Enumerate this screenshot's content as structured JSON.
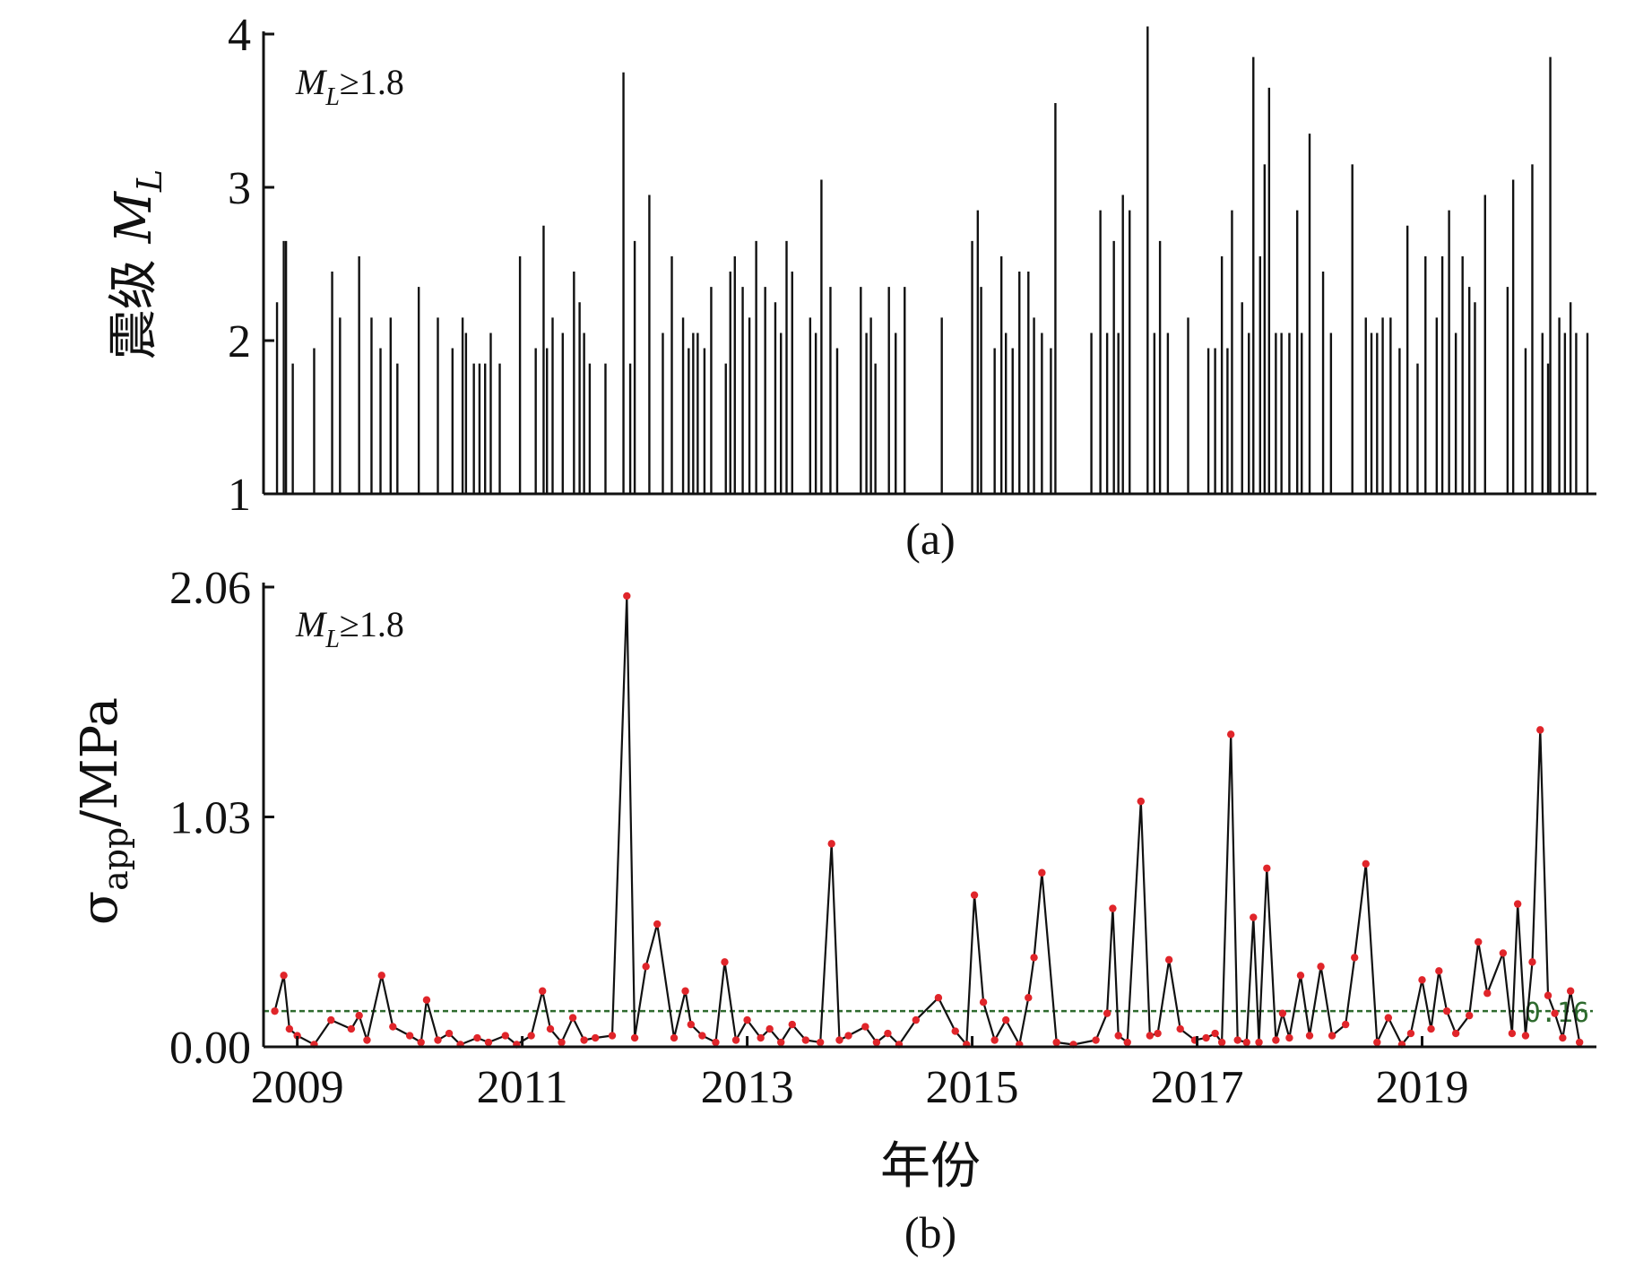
{
  "chart_data": [
    {
      "type": "bar",
      "panel_label": "(a)",
      "annotation": "M_L≥1.8",
      "ylabel": "震级 M_L",
      "ylim": [
        1,
        4
      ],
      "yticks": [
        "1",
        "2",
        "3",
        "4"
      ],
      "xlim": [
        2008.7,
        2020.55
      ],
      "color": "#111111",
      "x": [
        2008.82,
        2008.88,
        2008.9,
        2008.96,
        2009.15,
        2009.31,
        2009.38,
        2009.55,
        2009.66,
        2009.74,
        2009.83,
        2009.89,
        2010.08,
        2010.25,
        2010.38,
        2010.47,
        2010.5,
        2010.57,
        2010.62,
        2010.67,
        2010.72,
        2010.8,
        2010.98,
        2011.12,
        2011.19,
        2011.22,
        2011.27,
        2011.36,
        2011.46,
        2011.51,
        2011.55,
        2011.6,
        2011.74,
        2011.9,
        2011.96,
        2012.0,
        2012.13,
        2012.25,
        2012.33,
        2012.43,
        2012.48,
        2012.52,
        2012.56,
        2012.62,
        2012.68,
        2012.81,
        2012.85,
        2012.89,
        2012.96,
        2013.02,
        2013.08,
        2013.16,
        2013.25,
        2013.3,
        2013.35,
        2013.4,
        2013.56,
        2013.61,
        2013.66,
        2013.74,
        2013.8,
        2014.01,
        2014.06,
        2014.1,
        2014.14,
        2014.26,
        2014.32,
        2014.4,
        2014.73,
        2015.0,
        2015.05,
        2015.08,
        2015.2,
        2015.26,
        2015.3,
        2015.36,
        2015.42,
        2015.5,
        2015.55,
        2015.62,
        2015.7,
        2015.74,
        2016.06,
        2016.14,
        2016.2,
        2016.26,
        2016.3,
        2016.34,
        2016.4,
        2016.56,
        2016.62,
        2016.67,
        2016.74,
        2016.92,
        2017.1,
        2017.16,
        2017.22,
        2017.27,
        2017.31,
        2017.4,
        2017.46,
        2017.5,
        2017.56,
        2017.6,
        2017.64,
        2017.7,
        2017.75,
        2017.82,
        2017.89,
        2017.93,
        2018.0,
        2018.12,
        2018.19,
        2018.38,
        2018.5,
        2018.55,
        2018.6,
        2018.65,
        2018.72,
        2018.8,
        2018.87,
        2018.96,
        2019.03,
        2019.13,
        2019.18,
        2019.24,
        2019.3,
        2019.36,
        2019.42,
        2019.47,
        2019.56,
        2019.76,
        2019.81,
        2019.92,
        2019.98,
        2020.07,
        2020.12,
        2020.14,
        2020.22,
        2020.27,
        2020.32,
        2020.37,
        2020.47
      ],
      "values": [
        2.25,
        2.65,
        2.65,
        1.85,
        1.95,
        2.45,
        2.15,
        2.55,
        2.15,
        1.95,
        2.15,
        1.85,
        2.35,
        2.15,
        1.95,
        2.15,
        2.05,
        1.85,
        1.85,
        1.85,
        2.05,
        1.85,
        2.55,
        1.95,
        2.75,
        1.95,
        2.15,
        2.05,
        2.45,
        2.25,
        2.05,
        1.85,
        1.85,
        3.75,
        1.85,
        2.65,
        2.95,
        2.05,
        2.55,
        2.15,
        1.95,
        2.05,
        2.05,
        1.95,
        2.35,
        1.85,
        2.45,
        2.55,
        2.35,
        2.15,
        2.65,
        2.35,
        2.25,
        2.05,
        2.65,
        2.45,
        2.15,
        2.05,
        3.05,
        2.35,
        1.95,
        2.35,
        2.05,
        2.15,
        1.85,
        2.35,
        2.05,
        2.35,
        2.15,
        2.65,
        2.85,
        2.35,
        1.95,
        2.55,
        2.05,
        1.95,
        2.45,
        2.45,
        2.15,
        2.05,
        1.95,
        3.55,
        2.05,
        2.85,
        2.05,
        2.65,
        2.05,
        2.95,
        2.85,
        4.05,
        2.05,
        2.65,
        2.05,
        2.15,
        1.95,
        1.95,
        2.55,
        1.95,
        2.85,
        2.25,
        2.05,
        3.85,
        2.55,
        3.15,
        3.65,
        2.05,
        2.05,
        2.05,
        2.85,
        2.05,
        3.35,
        2.45,
        2.05,
        3.15,
        2.15,
        2.05,
        2.05,
        2.15,
        2.15,
        1.95,
        2.75,
        1.85,
        2.55,
        2.15,
        2.55,
        2.85,
        2.05,
        2.55,
        2.35,
        2.25,
        2.95,
        2.35,
        3.05,
        1.95,
        3.15,
        2.05,
        1.85,
        3.85,
        2.15,
        2.05,
        2.25,
        2.05,
        2.05
      ]
    },
    {
      "type": "line",
      "panel_label": "(b)",
      "annotation": "M_L≥1.8",
      "ylabel": "σ_app/MPa",
      "xlabel": "年份",
      "ylim": [
        0,
        2.06
      ],
      "yticks": [
        "0.00",
        "1.03",
        "2.06"
      ],
      "xlim": [
        2008.7,
        2020.55
      ],
      "xticks": [
        "2009",
        "2011",
        "2013",
        "2015",
        "2017",
        "2019"
      ],
      "reference_line": {
        "value": 0.16,
        "label": "0.16",
        "color": "#2e6b2e"
      },
      "line_color": "#111111",
      "marker_color": "#e0252a",
      "x": [
        2008.8,
        2008.88,
        2008.93,
        2009.0,
        2009.15,
        2009.3,
        2009.48,
        2009.55,
        2009.62,
        2009.75,
        2009.85,
        2010.0,
        2010.1,
        2010.15,
        2010.25,
        2010.35,
        2010.45,
        2010.6,
        2010.7,
        2010.85,
        2010.95,
        2011.08,
        2011.18,
        2011.25,
        2011.35,
        2011.45,
        2011.55,
        2011.65,
        2011.8,
        2011.93,
        2012.0,
        2012.1,
        2012.2,
        2012.35,
        2012.45,
        2012.5,
        2012.6,
        2012.72,
        2012.8,
        2012.9,
        2013.0,
        2013.12,
        2013.2,
        2013.3,
        2013.4,
        2013.52,
        2013.65,
        2013.75,
        2013.82,
        2013.9,
        2014.05,
        2014.15,
        2014.25,
        2014.35,
        2014.5,
        2014.7,
        2014.85,
        2014.95,
        2015.02,
        2015.1,
        2015.2,
        2015.3,
        2015.42,
        2015.5,
        2015.55,
        2015.62,
        2015.75,
        2015.9,
        2016.1,
        2016.2,
        2016.25,
        2016.3,
        2016.38,
        2016.5,
        2016.58,
        2016.65,
        2016.75,
        2016.85,
        2016.98,
        2017.08,
        2017.16,
        2017.22,
        2017.3,
        2017.36,
        2017.44,
        2017.5,
        2017.55,
        2017.62,
        2017.7,
        2017.76,
        2017.82,
        2017.92,
        2018.0,
        2018.1,
        2018.2,
        2018.32,
        2018.4,
        2018.5,
        2018.6,
        2018.7,
        2018.82,
        2018.9,
        2019.0,
        2019.08,
        2019.15,
        2019.22,
        2019.3,
        2019.42,
        2019.5,
        2019.58,
        2019.72,
        2019.8,
        2019.85,
        2019.92,
        2019.98,
        2020.05,
        2020.12,
        2020.18,
        2020.25,
        2020.32,
        2020.4
      ],
      "values": [
        0.16,
        0.32,
        0.08,
        0.05,
        0.01,
        0.12,
        0.08,
        0.14,
        0.03,
        0.32,
        0.09,
        0.05,
        0.02,
        0.21,
        0.03,
        0.06,
        0.01,
        0.04,
        0.02,
        0.05,
        0.01,
        0.05,
        0.25,
        0.08,
        0.02,
        0.13,
        0.03,
        0.04,
        0.05,
        2.02,
        0.04,
        0.36,
        0.55,
        0.04,
        0.25,
        0.1,
        0.05,
        0.02,
        0.38,
        0.03,
        0.12,
        0.04,
        0.08,
        0.02,
        0.1,
        0.03,
        0.02,
        0.91,
        0.03,
        0.05,
        0.09,
        0.02,
        0.06,
        0.01,
        0.12,
        0.22,
        0.07,
        0.01,
        0.68,
        0.2,
        0.03,
        0.12,
        0.01,
        0.22,
        0.4,
        0.78,
        0.02,
        0.01,
        0.03,
        0.15,
        0.62,
        0.05,
        0.02,
        1.1,
        0.05,
        0.06,
        0.39,
        0.08,
        0.03,
        0.04,
        0.06,
        0.02,
        1.4,
        0.03,
        0.02,
        0.58,
        0.02,
        0.8,
        0.03,
        0.15,
        0.04,
        0.32,
        0.05,
        0.36,
        0.05,
        0.1,
        0.4,
        0.82,
        0.02,
        0.13,
        0.01,
        0.06,
        0.3,
        0.08,
        0.34,
        0.16,
        0.06,
        0.14,
        0.47,
        0.24,
        0.42,
        0.06,
        0.64,
        0.05,
        0.38,
        1.42,
        0.23,
        0.15,
        0.04,
        0.25,
        0.02
      ]
    }
  ]
}
